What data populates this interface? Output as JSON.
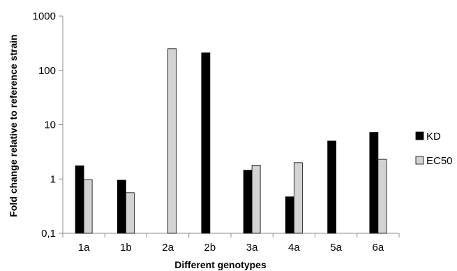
{
  "chart_data": {
    "type": "bar",
    "title": "",
    "xlabel": "Different genotypes",
    "ylabel": "Fold change relative to reference strain",
    "y_scale": "log",
    "ylim": [
      0.1,
      1000
    ],
    "y_ticks": [
      0.1,
      1,
      10,
      100,
      1000
    ],
    "y_tick_labels": [
      "0,1",
      "1",
      "10",
      "100",
      "1000"
    ],
    "categories": [
      "1a",
      "1b",
      "2a",
      "2b",
      "3a",
      "4a",
      "5a",
      "6a"
    ],
    "series": [
      {
        "name": "KD",
        "color": "#000000",
        "values": [
          1.75,
          0.95,
          null,
          210,
          1.45,
          0.47,
          5.0,
          7.2
        ]
      },
      {
        "name": "EC50",
        "color": "#d3d3d3",
        "values": [
          0.97,
          0.56,
          250,
          null,
          1.8,
          2.0,
          null,
          2.3
        ]
      }
    ],
    "legend": "right",
    "grid": false
  }
}
